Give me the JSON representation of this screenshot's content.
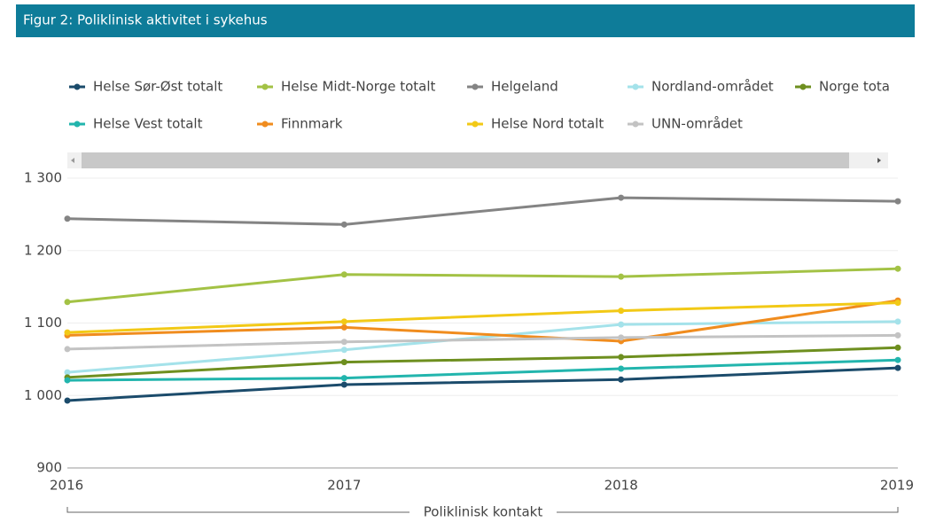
{
  "chart_data": {
    "type": "line",
    "title": "Figur 2: Poliklinisk aktivitet i sykehus",
    "x_label": "Poliklinisk kontakt",
    "categories": [
      "2016",
      "2017",
      "2018",
      "2019"
    ],
    "ylim": [
      900,
      1300
    ],
    "yticks": [
      900,
      {
        "value": 1000,
        "label": "1 000"
      },
      {
        "value": 1100,
        "label": "1 100"
      },
      {
        "value": 1200,
        "label": "1 200"
      },
      {
        "value": 1300,
        "label": "1 300"
      }
    ],
    "grid": true,
    "series": [
      {
        "name": "Helse Sør-Øst totalt",
        "color": "#1b4b6b",
        "values": [
          993,
          1015,
          1022,
          1038
        ]
      },
      {
        "name": "Helse Midt-Norge totalt",
        "color": "#a3c245",
        "values": [
          1129,
          1167,
          1164,
          1175
        ]
      },
      {
        "name": "Helgeland",
        "color": "#848484",
        "values": [
          1244,
          1236,
          1273,
          1268
        ]
      },
      {
        "name": "Nordland-området",
        "color": "#a4e2ea",
        "values": [
          1032,
          1063,
          1098,
          1102
        ]
      },
      {
        "name": "Norge totalt",
        "color": "#6e8f1f",
        "values": [
          1025,
          1046,
          1053,
          1066
        ]
      },
      {
        "name": "Helse Vest totalt",
        "color": "#22b5ad",
        "values": [
          1021,
          1024,
          1037,
          1049
        ]
      },
      {
        "name": "Finnmark",
        "color": "#f08c1e",
        "values": [
          1083,
          1094,
          1075,
          1131
        ]
      },
      {
        "name": "Helse Nord totalt",
        "color": "#f2c916",
        "values": [
          1087,
          1102,
          1117,
          1128
        ]
      },
      {
        "name": "UNN-området",
        "color": "#c3c3c3",
        "values": [
          1064,
          1074,
          1080,
          1083
        ]
      }
    ]
  }
}
